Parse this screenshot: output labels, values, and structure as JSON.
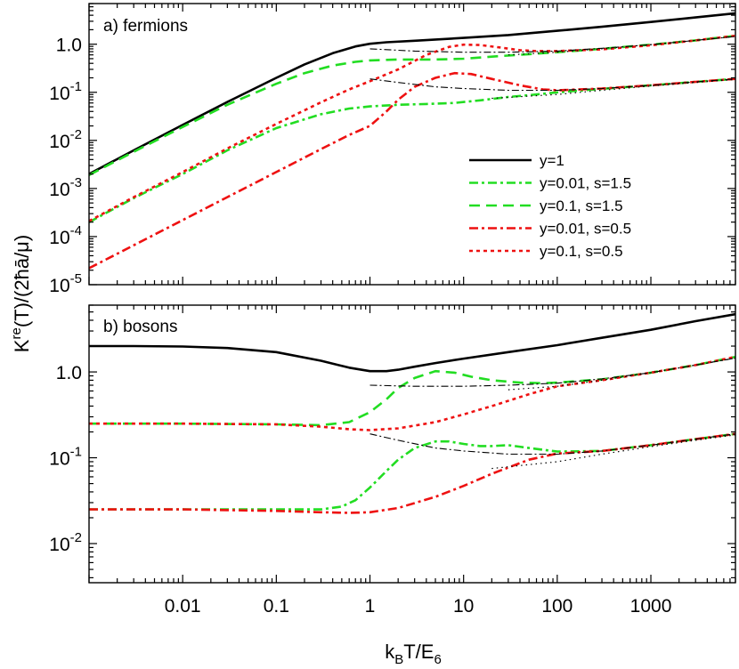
{
  "chart_data": {
    "type": "line",
    "xlabel": "k_B T/E_6",
    "ylabel": "K^re(T)/(2ħā/μ)",
    "x_scale": "log",
    "y_scale": "log",
    "x_ticks": [
      0.01,
      0.1,
      1,
      10,
      100,
      1000
    ],
    "x_tick_labels": [
      "0.01",
      "0.1",
      "1",
      "10",
      "100",
      "1000"
    ],
    "colors": {
      "y1": "#000000",
      "green": "#22dd22",
      "red": "#ee1111",
      "asymptote": "#000000"
    },
    "legend": {
      "placement": "right-middle of panel a",
      "entries": [
        {
          "label": "y=1",
          "color": "#000000",
          "style": "solid"
        },
        {
          "label": "y=0.01, s=1.5",
          "color": "#22dd22",
          "style": "dashdot"
        },
        {
          "label": "y=0.1, s=1.5",
          "color": "#22dd22",
          "style": "dashed"
        },
        {
          "label": "y=0.01, s=0.5",
          "color": "#ee1111",
          "style": "dashdot"
        },
        {
          "label": "y=0.1, s=0.5",
          "color": "#ee1111",
          "style": "dotted"
        }
      ]
    },
    "panels": [
      {
        "title": "a) fermions",
        "xlim": [
          0.001,
          8000
        ],
        "ylim": [
          1e-05,
          7
        ],
        "y_ticks": [
          1e-05,
          0.0001,
          0.001,
          0.01,
          0.1,
          1
        ],
        "y_tick_mantissa": [
          "10",
          "10",
          "10",
          "10",
          "10",
          "10"
        ],
        "y_tick_exponent": [
          "-5",
          "-4",
          "-3",
          "-2",
          "-1",
          "0"
        ],
        "y_tick_prefix": [
          "",
          "",
          "",
          "",
          "",
          "1.0"
        ],
        "series": [
          {
            "legend_index": 0,
            "x": [
              0.001,
              0.003,
              0.01,
              0.03,
              0.1,
              0.2,
              0.4,
              0.7,
              1,
              1.5,
              3,
              10,
              30,
              100,
              300,
              1000,
              3000,
              8000
            ],
            "y": [
              0.002,
              0.0062,
              0.021,
              0.063,
              0.2,
              0.38,
              0.65,
              0.9,
              1.02,
              1.1,
              1.18,
              1.35,
              1.55,
              1.9,
              2.3,
              2.9,
              3.6,
              4.4
            ]
          },
          {
            "legend_index": 2,
            "x": [
              0.001,
              0.003,
              0.01,
              0.03,
              0.1,
              0.2,
              0.4,
              0.7,
              1,
              2,
              5,
              10,
              20,
              50,
              100,
              300,
              1000,
              3000,
              8000
            ],
            "y": [
              0.0019,
              0.0058,
              0.019,
              0.055,
              0.15,
              0.25,
              0.36,
              0.43,
              0.46,
              0.48,
              0.48,
              0.5,
              0.55,
              0.62,
              0.68,
              0.8,
              0.98,
              1.2,
              1.5
            ]
          },
          {
            "legend_index": 1,
            "x": [
              0.001,
              0.003,
              0.01,
              0.03,
              0.1,
              0.3,
              0.6,
              1,
              2,
              4,
              8,
              15,
              30,
              60,
              100,
              300,
              1000,
              3000,
              8000
            ],
            "y": [
              0.0002,
              0.00063,
              0.002,
              0.0062,
              0.018,
              0.035,
              0.046,
              0.051,
              0.055,
              0.057,
              0.06,
              0.068,
              0.08,
              0.09,
              0.1,
              0.118,
              0.14,
              0.165,
              0.19
            ]
          },
          {
            "legend_index": 4,
            "x": [
              0.001,
              0.003,
              0.01,
              0.03,
              0.1,
              0.3,
              0.6,
              1,
              2,
              4,
              7,
              10,
              15,
              25,
              40,
              60,
              100,
              300,
              1000,
              3000,
              8000
            ],
            "y": [
              0.00021,
              0.00066,
              0.0022,
              0.0068,
              0.022,
              0.062,
              0.115,
              0.17,
              0.3,
              0.6,
              0.88,
              0.98,
              0.96,
              0.85,
              0.75,
              0.72,
              0.72,
              0.78,
              0.95,
              1.2,
              1.5
            ]
          },
          {
            "legend_index": 3,
            "x": [
              0.001,
              0.003,
              0.01,
              0.03,
              0.1,
              0.3,
              0.6,
              1,
              1.5,
              2,
              3,
              5,
              8,
              12,
              20,
              40,
              70,
              100,
              300,
              1000,
              3000,
              8000
            ],
            "y": [
              2.2e-05,
              6.6e-05,
              0.00022,
              0.00066,
              0.0022,
              0.0066,
              0.013,
              0.02,
              0.04,
              0.07,
              0.13,
              0.2,
              0.25,
              0.24,
              0.19,
              0.14,
              0.115,
              0.11,
              0.12,
              0.14,
              0.165,
              0.19
            ]
          },
          {
            "legend_index": -1,
            "style": "dashdot-thin",
            "x": [
              1,
              3,
              10,
              30,
              100,
              300,
              1000,
              3000,
              8000
            ],
            "y": [
              0.8,
              0.72,
              0.68,
              0.68,
              0.72,
              0.82,
              0.98,
              1.2,
              1.45
            ]
          },
          {
            "legend_index": -1,
            "style": "dashdot-thin",
            "x": [
              1,
              2,
              5,
              10,
              30,
              100,
              300,
              1000,
              3000,
              8000
            ],
            "y": [
              0.19,
              0.16,
              0.13,
              0.12,
              0.11,
              0.11,
              0.12,
              0.14,
              0.165,
              0.19
            ]
          },
          {
            "legend_index": -1,
            "style": "dotted-thin",
            "x": [
              30,
              100,
              300,
              1000,
              3000,
              8000
            ],
            "y": [
              0.6,
              0.68,
              0.8,
              0.98,
              1.2,
              1.45
            ]
          },
          {
            "legend_index": -1,
            "style": "dotted-thin",
            "x": [
              20,
              100,
              300,
              1000,
              3000,
              8000
            ],
            "y": [
              0.075,
              0.09,
              0.11,
              0.135,
              0.16,
              0.185
            ]
          }
        ]
      },
      {
        "title": "b) bosons",
        "xlim": [
          0.001,
          8000
        ],
        "ylim": [
          0.0035,
          6
        ],
        "y_ticks": [
          0.01,
          0.1,
          1
        ],
        "y_tick_mantissa": [
          "10",
          "10",
          "10"
        ],
        "y_tick_exponent": [
          "-2",
          "-1",
          "0"
        ],
        "y_tick_prefix": [
          "",
          "",
          "1.0"
        ],
        "series": [
          {
            "legend_index": 0,
            "x": [
              0.001,
              0.003,
              0.01,
              0.03,
              0.1,
              0.3,
              0.6,
              1,
              1.5,
              2,
              3,
              5,
              10,
              30,
              100,
              300,
              1000,
              3000,
              8000
            ],
            "y": [
              2.0,
              2.0,
              1.98,
              1.9,
              1.7,
              1.35,
              1.12,
              1.02,
              1.02,
              1.06,
              1.15,
              1.27,
              1.43,
              1.7,
              2.05,
              2.5,
              3.1,
              3.9,
              4.7
            ]
          },
          {
            "legend_index": 2,
            "x": [
              0.001,
              0.01,
              0.1,
              0.3,
              0.6,
              1,
              1.5,
              2,
              3,
              5,
              8,
              12,
              20,
              40,
              70,
              100,
              300,
              1000,
              3000,
              8000
            ],
            "y": [
              0.25,
              0.25,
              0.245,
              0.24,
              0.26,
              0.34,
              0.48,
              0.65,
              0.85,
              1.02,
              0.98,
              0.88,
              0.8,
              0.75,
              0.74,
              0.75,
              0.82,
              0.98,
              1.2,
              1.5
            ]
          },
          {
            "legend_index": 4,
            "x": [
              0.001,
              0.01,
              0.1,
              0.3,
              0.6,
              1,
              2,
              5,
              10,
              20,
              50,
              100,
              300,
              1000,
              3000,
              8000
            ],
            "y": [
              0.25,
              0.25,
              0.245,
              0.23,
              0.215,
              0.21,
              0.22,
              0.26,
              0.32,
              0.4,
              0.55,
              0.68,
              0.8,
              0.98,
              1.2,
              1.5
            ]
          },
          {
            "legend_index": 1,
            "x": [
              0.001,
              0.01,
              0.1,
              0.3,
              0.5,
              0.7,
              1,
              1.5,
              2,
              3,
              5,
              7,
              10,
              15,
              20,
              30,
              50,
              100,
              300,
              1000,
              3000,
              8000
            ],
            "y": [
              0.025,
              0.025,
              0.025,
              0.025,
              0.027,
              0.032,
              0.045,
              0.07,
              0.095,
              0.13,
              0.155,
              0.155,
              0.145,
              0.137,
              0.137,
              0.14,
              0.13,
              0.118,
              0.12,
              0.14,
              0.165,
              0.19
            ]
          },
          {
            "legend_index": 3,
            "x": [
              0.001,
              0.01,
              0.1,
              0.3,
              0.6,
              1,
              2,
              5,
              10,
              20,
              50,
              100,
              300,
              1000,
              3000,
              8000
            ],
            "y": [
              0.025,
              0.025,
              0.024,
              0.0232,
              0.0228,
              0.0232,
              0.026,
              0.035,
              0.047,
              0.065,
              0.095,
              0.112,
              0.12,
              0.14,
              0.165,
              0.19
            ]
          },
          {
            "legend_index": -1,
            "style": "dashdot-thin",
            "x": [
              1,
              3,
              10,
              30,
              100,
              300,
              1000,
              3000,
              8000
            ],
            "y": [
              0.7,
              0.68,
              0.68,
              0.7,
              0.74,
              0.83,
              0.98,
              1.2,
              1.45
            ]
          },
          {
            "legend_index": -1,
            "style": "dashdot-thin",
            "x": [
              1,
              2,
              5,
              10,
              30,
              100,
              300,
              1000,
              3000,
              8000
            ],
            "y": [
              0.19,
              0.16,
              0.13,
              0.12,
              0.11,
              0.11,
              0.12,
              0.14,
              0.165,
              0.19
            ]
          },
          {
            "legend_index": -1,
            "style": "dotted-thin",
            "x": [
              30,
              100,
              300,
              1000,
              3000,
              8000
            ],
            "y": [
              0.62,
              0.68,
              0.8,
              0.98,
              1.2,
              1.45
            ]
          },
          {
            "legend_index": -1,
            "style": "dotted-thin",
            "x": [
              20,
              100,
              300,
              1000,
              3000,
              8000
            ],
            "y": [
              0.075,
              0.09,
              0.11,
              0.135,
              0.16,
              0.185
            ]
          }
        ]
      }
    ]
  }
}
